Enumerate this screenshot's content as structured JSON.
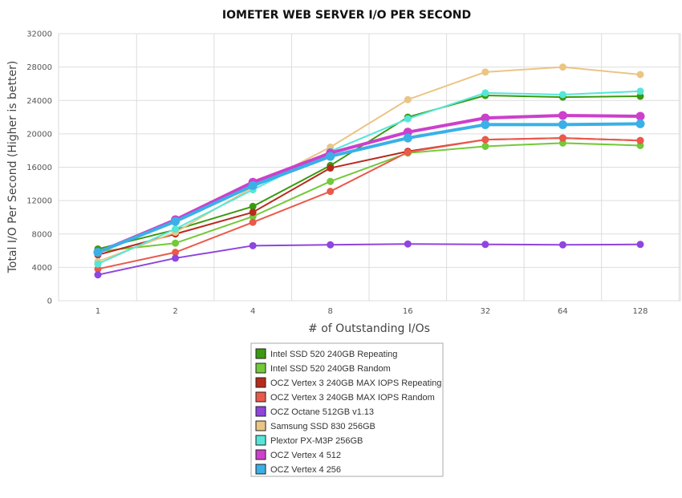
{
  "chart_data": {
    "type": "line",
    "title": "IOMETER WEB SERVER I/O PER SECOND",
    "xlabel": "# of Outstanding I/Os",
    "ylabel": "Total I/O Per Second (Higher is better)",
    "categories": [
      "1",
      "2",
      "4",
      "8",
      "16",
      "32",
      "64",
      "128"
    ],
    "ylim": [
      0,
      32000
    ],
    "yticks": [
      0,
      4000,
      8000,
      12000,
      16000,
      20000,
      24000,
      28000,
      32000
    ],
    "grid": true,
    "legend_position": "bottom-center",
    "series": [
      {
        "name": "Intel SSD 520 240GB Repeating",
        "color": "#3a9a0f",
        "values": [
          6200,
          8500,
          11300,
          16200,
          22000,
          24600,
          24400,
          24500
        ]
      },
      {
        "name": "Intel SSD 520 240GB Random",
        "color": "#72c93a",
        "values": [
          5900,
          6900,
          10100,
          14300,
          17700,
          18500,
          18900,
          18600
        ]
      },
      {
        "name": "OCZ Vertex 3 240GB MAX IOPS Repeating",
        "color": "#b82a1c",
        "values": [
          5500,
          8000,
          10600,
          15900,
          17900,
          19300,
          19500,
          19200
        ]
      },
      {
        "name": "OCZ Vertex 3 240GB MAX IOPS Random",
        "color": "#ea5a4b",
        "values": [
          3800,
          5800,
          9400,
          13100,
          17800,
          19300,
          19500,
          19200
        ]
      },
      {
        "name": "OCZ Octane 512GB v1.13",
        "color": "#8f45de",
        "values": [
          3100,
          5100,
          6600,
          6700,
          6800,
          6750,
          6700,
          6750
        ]
      },
      {
        "name": "Samsung SSD 830 256GB",
        "color": "#eac586",
        "values": [
          4700,
          8200,
          13600,
          18400,
          24100,
          27400,
          28000,
          27100
        ]
      },
      {
        "name": "Plextor PX-M3P 256GB",
        "color": "#55e6d9",
        "values": [
          4400,
          8600,
          13300,
          17900,
          21800,
          24900,
          24700,
          25100
        ]
      },
      {
        "name": "OCZ Vertex 4 512",
        "color": "#cc40cc",
        "values": [
          5800,
          9700,
          14200,
          17700,
          20200,
          21900,
          22200,
          22100
        ]
      },
      {
        "name": "OCZ Vertex 4 256",
        "color": "#3ab0e6",
        "values": [
          5800,
          9500,
          13800,
          17300,
          19500,
          21100,
          21100,
          21200
        ]
      }
    ]
  }
}
